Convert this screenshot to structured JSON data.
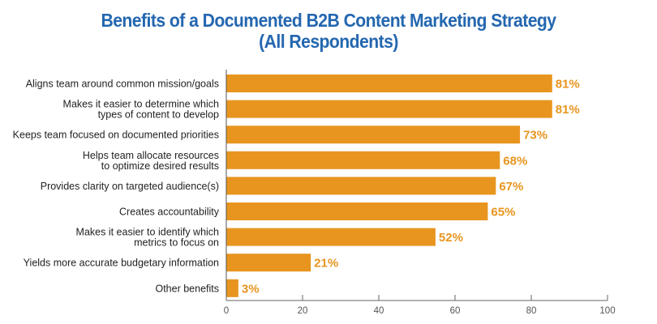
{
  "chart_data": {
    "type": "bar",
    "orientation": "horizontal",
    "title": "Benefits of a Documented B2B Content Marketing Strategy",
    "subtitle": "(All Respondents)",
    "categories": [
      [
        "Aligns team around common mission/goals"
      ],
      [
        "Makes it easier to determine which",
        "types of content to develop"
      ],
      [
        "Keeps team focused on documented priorities"
      ],
      [
        "Helps team allocate resources",
        "to optimize desired results"
      ],
      [
        "Provides clarity on targeted audience(s)"
      ],
      [
        "Creates accountability"
      ],
      [
        "Makes it easier to identify which",
        "metrics to focus on"
      ],
      [
        "Yields more accurate budgetary information"
      ],
      [
        "Other benefits"
      ]
    ],
    "values": [
      81,
      81,
      73,
      68,
      67,
      65,
      52,
      21,
      3
    ],
    "value_labels": [
      "81%",
      "81%",
      "73%",
      "68%",
      "67%",
      "65%",
      "52%",
      "21%",
      "3%"
    ],
    "xticks": [
      "0",
      "20",
      "40",
      "60",
      "80",
      "100"
    ],
    "xlim": [
      0,
      100
    ],
    "xlabel": "",
    "ylabel": "",
    "grid": false,
    "colors": {
      "bar": "#e8951f",
      "title": "#2467b0"
    }
  }
}
